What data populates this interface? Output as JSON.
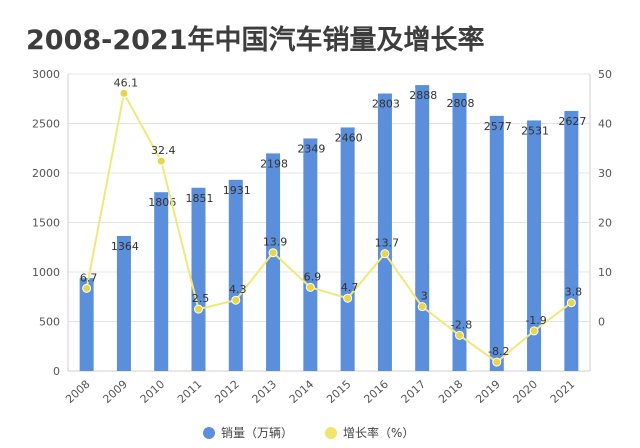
{
  "chart_data": {
    "type": "bar",
    "title": "2008-2021年中国汽车销量及增长率",
    "categories": [
      "2008",
      "2009",
      "2010",
      "2011",
      "2012",
      "2013",
      "2014",
      "2015",
      "2016",
      "2017",
      "2018",
      "2019",
      "2020",
      "2021"
    ],
    "series": [
      {
        "name": "销量（万辆）",
        "type": "bar",
        "axis": "left",
        "color": "#5b8fdb",
        "values": [
          938,
          1364,
          1806,
          1851,
          1931,
          2198,
          2349,
          2460,
          2803,
          2888,
          2808,
          2577,
          2531,
          2627
        ]
      },
      {
        "name": "增长率（%）",
        "type": "line",
        "axis": "right",
        "color": "#f2e77a",
        "values": [
          6.7,
          46.1,
          32.4,
          2.5,
          4.3,
          13.9,
          6.9,
          4.7,
          13.7,
          3,
          -2.8,
          -8.2,
          -1.9,
          3.8
        ]
      }
    ],
    "bar_value_labels": [
      "",
      "1364",
      "1806",
      "1851",
      "1931",
      "2198",
      "2349",
      "2460",
      "2803",
      "2888",
      "2808",
      "2577",
      "2531",
      "2627"
    ],
    "rate_value_labels": [
      "6.7",
      "46.1",
      "32.4",
      "2.5",
      "4.3",
      "13.9",
      "6.9",
      "4.7",
      "13.7",
      "3",
      "-2.8",
      "-8.2",
      "-1.9",
      "3.8"
    ],
    "y_left": {
      "min": 0,
      "max": 3000,
      "ticks": [
        0,
        500,
        1000,
        1500,
        2000,
        2500,
        3000
      ]
    },
    "y_right": {
      "min": -10,
      "max": 50,
      "ticks": [
        0,
        10,
        20,
        30,
        40,
        50
      ]
    },
    "grid": true,
    "legend_position": "bottom"
  }
}
